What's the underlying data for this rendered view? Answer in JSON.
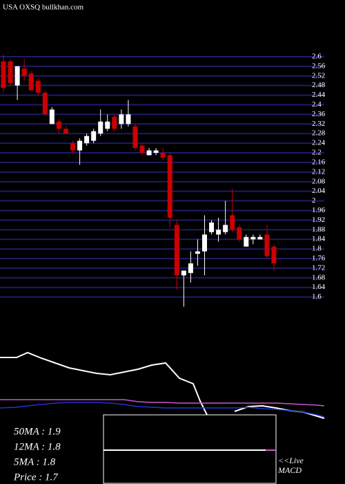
{
  "chart_data": [
    {
      "type": "candlestick",
      "title": "USA OXSQ bullkhan.com",
      "up_color": "#ffffff",
      "down_color": "#cc0000",
      "grid_color": "#1c1c6a",
      "ylim": [
        1.55,
        2.62
      ],
      "yticks": [
        2.6,
        2.56,
        2.52,
        2.48,
        2.44,
        2.4,
        2.36,
        2.32,
        2.28,
        2.24,
        2.2,
        2.16,
        2.12,
        2.08,
        2.04,
        2,
        1.96,
        1.92,
        1.88,
        1.84,
        1.8,
        1.76,
        1.72,
        1.68,
        1.64,
        1.6
      ],
      "grid": true,
      "open": [
        2.58,
        2.58,
        2.48,
        2.55,
        2.53,
        2.5,
        2.45,
        2.32,
        2.33,
        2.3,
        2.24,
        2.21,
        2.24,
        2.25,
        2.28,
        2.3,
        2.35,
        2.32,
        2.32,
        2.31,
        2.23,
        2.19,
        2.2,
        2.2,
        2.19,
        1.9,
        1.69,
        1.7,
        1.78,
        1.79,
        1.87,
        1.86,
        1.87,
        1.94,
        1.89,
        1.81,
        1.84,
        1.84,
        1.86,
        1.81
      ],
      "high": [
        2.61,
        2.59,
        2.56,
        2.59,
        2.54,
        2.51,
        2.46,
        2.39,
        2.34,
        2.31,
        2.25,
        2.26,
        2.28,
        2.3,
        2.38,
        2.36,
        2.36,
        2.38,
        2.42,
        2.32,
        2.24,
        2.22,
        2.22,
        2.22,
        2.2,
        1.92,
        1.71,
        1.79,
        1.84,
        1.94,
        1.92,
        1.93,
        2.0,
        2.05,
        1.9,
        1.86,
        1.86,
        1.86,
        1.9,
        1.82
      ],
      "low": [
        2.45,
        2.48,
        2.42,
        2.5,
        2.46,
        2.44,
        2.36,
        2.32,
        2.28,
        2.28,
        2.2,
        2.15,
        2.23,
        2.24,
        2.27,
        2.29,
        2.29,
        2.3,
        2.31,
        2.21,
        2.19,
        2.19,
        2.19,
        2.17,
        1.89,
        1.63,
        1.56,
        1.66,
        1.73,
        1.69,
        1.86,
        1.83,
        1.86,
        1.87,
        1.83,
        1.81,
        1.82,
        1.84,
        1.76,
        1.71
      ],
      "close": [
        2.47,
        2.49,
        2.56,
        2.52,
        2.46,
        2.45,
        2.36,
        2.38,
        2.3,
        2.28,
        2.21,
        2.25,
        2.27,
        2.29,
        2.33,
        2.33,
        2.3,
        2.36,
        2.36,
        2.22,
        2.2,
        2.21,
        2.21,
        2.18,
        1.93,
        1.69,
        1.71,
        1.74,
        1.79,
        1.86,
        1.91,
        1.88,
        1.9,
        1.88,
        1.84,
        1.85,
        1.85,
        1.85,
        1.77,
        1.74
      ]
    },
    {
      "type": "line",
      "xlim": [
        0,
        470
      ],
      "ylim": [
        -5,
        100
      ],
      "series": [
        {
          "name": "Price",
          "color": "#ffffff",
          "x": [
            0,
            24,
            40,
            60,
            80,
            100,
            120,
            140,
            160,
            180,
            200,
            220,
            240,
            260,
            280,
            290,
            300,
            320,
            340,
            360,
            380,
            400,
            420,
            440,
            460,
            470
          ],
          "values": [
            83,
            83,
            90,
            82,
            75,
            68,
            64,
            60,
            58,
            62,
            66,
            72,
            75,
            53,
            45,
            20,
            0,
            null,
            5,
            12,
            13,
            10,
            6,
            4,
            -2,
            -5
          ]
        },
        {
          "name": "50MA",
          "color": "#cc55cc",
          "x": [
            0,
            24,
            40,
            60,
            80,
            100,
            120,
            140,
            160,
            180,
            200,
            220,
            240,
            260,
            280,
            290,
            300,
            320,
            340,
            360,
            380,
            400,
            420,
            440,
            460,
            470
          ],
          "values": [
            22,
            22,
            22,
            22,
            22,
            22,
            22,
            22,
            22,
            22,
            19,
            18,
            18,
            17,
            17,
            17,
            17,
            17,
            17,
            17,
            17,
            17,
            16,
            15,
            14,
            13
          ]
        },
        {
          "name": "12MA",
          "color": "#2233cc",
          "x": [
            0,
            24,
            40,
            60,
            80,
            100,
            120,
            140,
            160,
            180,
            200,
            220,
            240,
            260,
            280,
            290,
            300,
            320,
            340,
            360,
            380,
            400,
            420,
            440,
            460,
            470
          ],
          "values": [
            10,
            11,
            13,
            15,
            17,
            18,
            18,
            18,
            17,
            15,
            12,
            11,
            10,
            10,
            10,
            10,
            10,
            10,
            10,
            11,
            9,
            8,
            6,
            4,
            0,
            -3
          ]
        }
      ],
      "legend_texts": [
        "50MA : 1.9",
        "12MA : 1.8",
        "5MA : 1.8",
        "Price   : 1.7"
      ],
      "notes": [
        "<<Live",
        "MACD"
      ]
    }
  ]
}
